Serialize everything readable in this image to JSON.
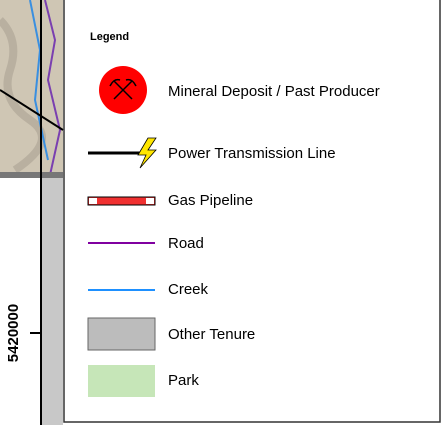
{
  "coordinate_label": "5420000",
  "legend": {
    "title": "Legend",
    "items": [
      "Mineral Deposit / Past Producer",
      "Power Transmission Line",
      "Gas Pipeline",
      "Road",
      "Creek",
      "Other Tenure",
      "Park"
    ]
  }
}
